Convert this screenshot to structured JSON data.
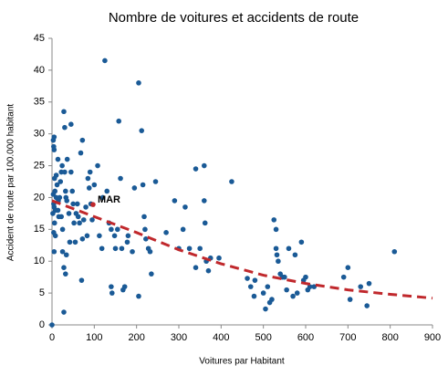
{
  "chart_data": {
    "type": "scatter",
    "title": "Nombre de voitures et accidents de route",
    "x_label": "Voitures  par Habitant",
    "y_label": "Accident de route par 100.000 habitant",
    "color": "#1a5a96",
    "xlim": [
      0,
      900
    ],
    "xticks": [
      0,
      100,
      200,
      300,
      400,
      500,
      600,
      700,
      800,
      900
    ],
    "ylim": [
      0,
      45
    ],
    "yticks": [
      0,
      5,
      10,
      15,
      20,
      25,
      30,
      35,
      40,
      45
    ],
    "grid": false,
    "x": [
      0,
      2,
      3,
      4,
      5,
      5,
      6,
      7,
      3,
      4,
      5,
      8,
      6,
      4,
      5,
      8,
      10,
      10,
      12,
      14,
      14,
      15,
      16,
      18,
      20,
      22,
      24,
      22,
      25,
      25,
      28,
      30,
      30,
      32,
      33,
      35,
      28,
      32,
      34,
      36,
      40,
      42,
      45,
      45,
      48,
      50,
      52,
      55,
      57,
      60,
      62,
      65,
      68,
      70,
      72,
      72,
      75,
      80,
      83,
      85,
      88,
      90,
      92,
      95,
      100,
      108,
      112,
      118,
      120,
      125,
      130,
      135,
      140,
      140,
      142,
      148,
      150,
      155,
      158,
      162,
      165,
      168,
      172,
      178,
      180,
      190,
      195,
      205,
      205,
      212,
      215,
      218,
      220,
      222,
      228,
      232,
      235,
      245,
      270,
      290,
      300,
      310,
      315,
      325,
      340,
      340,
      350,
      360,
      360,
      362,
      365,
      370,
      375,
      395,
      425,
      462,
      470,
      478,
      480,
      500,
      505,
      510,
      515,
      520,
      525,
      530,
      530,
      532,
      535,
      540,
      545,
      550,
      555,
      560,
      570,
      575,
      580,
      590,
      595,
      600,
      605,
      610,
      620,
      690,
      700,
      705,
      730,
      745,
      750,
      810,
      28
    ],
    "values": [
      0,
      17.5,
      29,
      28,
      29.5,
      27.5,
      23,
      21,
      20.5,
      19,
      18.5,
      18,
      16,
      14.5,
      11.5,
      14,
      20,
      23.5,
      22,
      26,
      18,
      19.5,
      17,
      20,
      22.5,
      24,
      25,
      17,
      15,
      11.5,
      33.5,
      31,
      24,
      21,
      20,
      19.5,
      9,
      8,
      11,
      26,
      17.5,
      13,
      31.5,
      24,
      21,
      19,
      16,
      13,
      17.5,
      19,
      17,
      16,
      27,
      7,
      29,
      13.5,
      16.5,
      18.5,
      14,
      23,
      21.5,
      24,
      19,
      16.5,
      22,
      25,
      14,
      12,
      20,
      41.5,
      21,
      16,
      15,
      6,
      5,
      14,
      12,
      15,
      32,
      23,
      12,
      5.5,
      6,
      13,
      14,
      11.5,
      21.5,
      38,
      4.5,
      30.5,
      22,
      17,
      15,
      13.5,
      12,
      11.5,
      8,
      22.5,
      14.5,
      19.5,
      12,
      15,
      18.5,
      12,
      24.5,
      9,
      12,
      25,
      19.5,
      16,
      10,
      8.5,
      10.5,
      10.5,
      22.5,
      7.3,
      6,
      4.5,
      7,
      5,
      2.5,
      6,
      3.5,
      4,
      16.5,
      15,
      12,
      11,
      10,
      8,
      7.5,
      7.5,
      5.5,
      12,
      4.5,
      11,
      5,
      13,
      7,
      7.5,
      5.5,
      6,
      6,
      7.5,
      9,
      4,
      6,
      3,
      6.5,
      11.5,
      2
    ],
    "highlight": {
      "label": "MAR",
      "x": 97,
      "y": 18.9,
      "color": "#c0282c"
    },
    "trendline": {
      "color": "#c0282c",
      "x": [
        0,
        100,
        200,
        300,
        400,
        500,
        600,
        700,
        800,
        900
      ],
      "values": [
        19.5,
        17,
        14.5,
        11.8,
        9.6,
        7.8,
        6.5,
        5.5,
        4.8,
        4.2
      ]
    }
  }
}
